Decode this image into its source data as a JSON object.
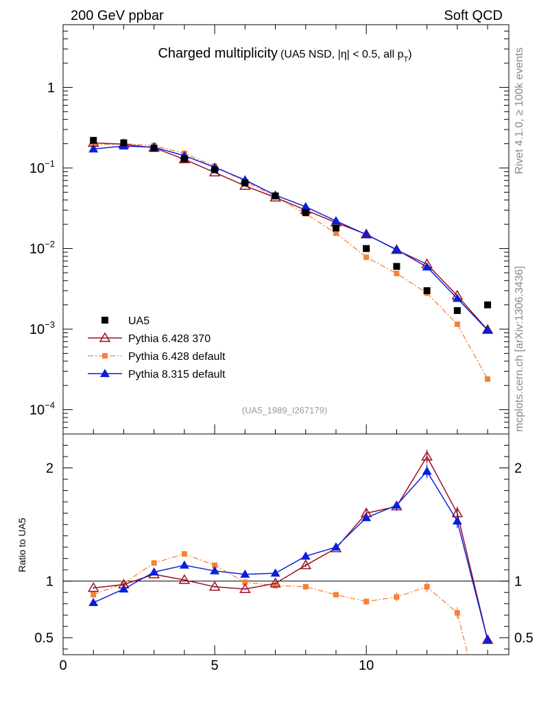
{
  "header": {
    "left": "200 GeV ppbar",
    "right": "Soft QCD"
  },
  "side": {
    "top": "Rivet 4.1.0, ≥ 100k events",
    "bottom": "mcplots.cern.ch [arXiv:1306.3436]"
  },
  "colors": {
    "data": "#000000",
    "py6_370": "#990f1f",
    "py6_default": "#f5813a",
    "py8_default": "#0a1fdb",
    "ref_line": "#000000"
  },
  "chart_data": [
    {
      "type": "line",
      "title": "Charged multiplicity",
      "subtitle": "(UA5 NSD, |η| < 0.5, all p",
      "subtitle_sub": "T",
      "subtitle_end": ")",
      "annotation": "(UA5_1989_I267179)",
      "yscale": "log",
      "xlim": [
        0,
        14.7
      ],
      "ylim": [
        5e-05,
        6
      ],
      "ytick_labels": [
        {
          "value": 1,
          "base": "1",
          "exp": ""
        },
        {
          "value": 0.1,
          "base": "10",
          "exp": "−1"
        },
        {
          "value": 0.01,
          "base": "10",
          "exp": "−2"
        },
        {
          "value": 0.001,
          "base": "10",
          "exp": "−3"
        },
        {
          "value": 0.0001,
          "base": "10",
          "exp": "−4"
        }
      ],
      "legend": [
        {
          "key": "data",
          "label": "UA5"
        },
        {
          "key": "py6_370",
          "label": "Pythia 6.428 370"
        },
        {
          "key": "py6_default",
          "label": "Pythia 6.428 default"
        },
        {
          "key": "py8_default",
          "label": "Pythia 8.315 default"
        }
      ],
      "series": [
        {
          "key": "data",
          "name": "UA5",
          "x": [
            1,
            2,
            3,
            4,
            5,
            6,
            7,
            8,
            9,
            10,
            11,
            12,
            13,
            14
          ],
          "values": [
            0.22,
            0.205,
            0.175,
            0.13,
            0.095,
            0.065,
            0.045,
            0.028,
            0.018,
            0.01,
            0.006,
            0.003,
            0.0017,
            0.002
          ]
        },
        {
          "key": "py6_370",
          "name": "Pythia 6.428 370",
          "x": [
            1,
            2,
            3,
            4,
            5,
            6,
            7,
            8,
            9,
            10,
            11,
            12,
            13,
            14
          ],
          "values": [
            0.205,
            0.197,
            0.178,
            0.128,
            0.088,
            0.06,
            0.043,
            0.03,
            0.021,
            0.015,
            0.0096,
            0.0064,
            0.0026,
            0.00098
          ]
        },
        {
          "key": "py6_default",
          "name": "Pythia 6.428 default",
          "x": [
            1,
            2,
            3,
            4,
            5,
            6,
            7,
            8,
            9,
            10,
            11,
            12,
            13,
            14
          ],
          "values": [
            0.193,
            0.2,
            0.19,
            0.152,
            0.105,
            0.068,
            0.044,
            0.027,
            0.0155,
            0.0078,
            0.0049,
            0.0028,
            0.00115,
            0.00024
          ]
        },
        {
          "key": "py8_default",
          "name": "Pythia 8.315 default",
          "x": [
            1,
            2,
            3,
            4,
            5,
            6,
            7,
            8,
            9,
            10,
            11,
            12,
            13,
            14
          ],
          "values": [
            0.172,
            0.187,
            0.181,
            0.142,
            0.102,
            0.071,
            0.046,
            0.033,
            0.022,
            0.0149,
            0.0097,
            0.0059,
            0.0024,
            0.00097
          ]
        }
      ]
    },
    {
      "type": "line",
      "ylabel": "Ratio to UA5",
      "xlabel": "",
      "xlim": [
        0,
        14.7
      ],
      "ylim": [
        0.35,
        2.3
      ],
      "xticks": [
        0,
        5,
        10
      ],
      "xtick_labels": [
        "0",
        "5",
        "10"
      ],
      "yticks": [
        0.5,
        1,
        2
      ],
      "ytick_labels": [
        "0.5",
        "1",
        "2"
      ],
      "reference": 1,
      "series": [
        {
          "key": "py6_370",
          "name": "Pythia 6.428 370",
          "x": [
            1,
            2,
            3,
            4,
            5,
            6,
            7,
            8,
            9,
            10,
            11,
            12,
            13,
            14
          ],
          "values": [
            0.94,
            0.97,
            1.06,
            1.01,
            0.95,
            0.93,
            0.98,
            1.14,
            1.29,
            1.6,
            1.66,
            2.1,
            1.6,
            0.48
          ],
          "errors": [
            0.01,
            0.01,
            0.01,
            0.01,
            0.01,
            0.01,
            0.01,
            0.015,
            0.02,
            0.03,
            0.04,
            0.06,
            0.06,
            0.02
          ]
        },
        {
          "key": "py6_default",
          "name": "Pythia 6.428 default",
          "x": [
            1,
            2,
            3,
            4,
            5,
            6,
            7,
            8,
            9,
            10,
            11,
            12,
            13,
            13.35
          ],
          "values": [
            0.88,
            0.98,
            1.16,
            1.24,
            1.14,
            0.99,
            0.96,
            0.95,
            0.88,
            0.82,
            0.86,
            0.95,
            0.72,
            0.35
          ],
          "errors": [
            0.01,
            0.01,
            0.01,
            0.01,
            0.01,
            0.01,
            0.01,
            0.015,
            0.02,
            0.03,
            0.04,
            0.05,
            0.05,
            0
          ]
        },
        {
          "key": "py8_default",
          "name": "Pythia 8.315 default",
          "x": [
            1,
            2,
            3,
            4,
            5,
            6,
            7,
            8,
            9,
            10,
            11,
            12,
            13,
            14
          ],
          "values": [
            0.81,
            0.93,
            1.08,
            1.14,
            1.09,
            1.06,
            1.07,
            1.22,
            1.3,
            1.56,
            1.67,
            1.97,
            1.53,
            0.48
          ],
          "errors": [
            0.01,
            0.01,
            0.01,
            0.01,
            0.01,
            0.01,
            0.01,
            0.015,
            0.02,
            0.03,
            0.04,
            0.06,
            0.06,
            0.02
          ]
        }
      ]
    }
  ]
}
